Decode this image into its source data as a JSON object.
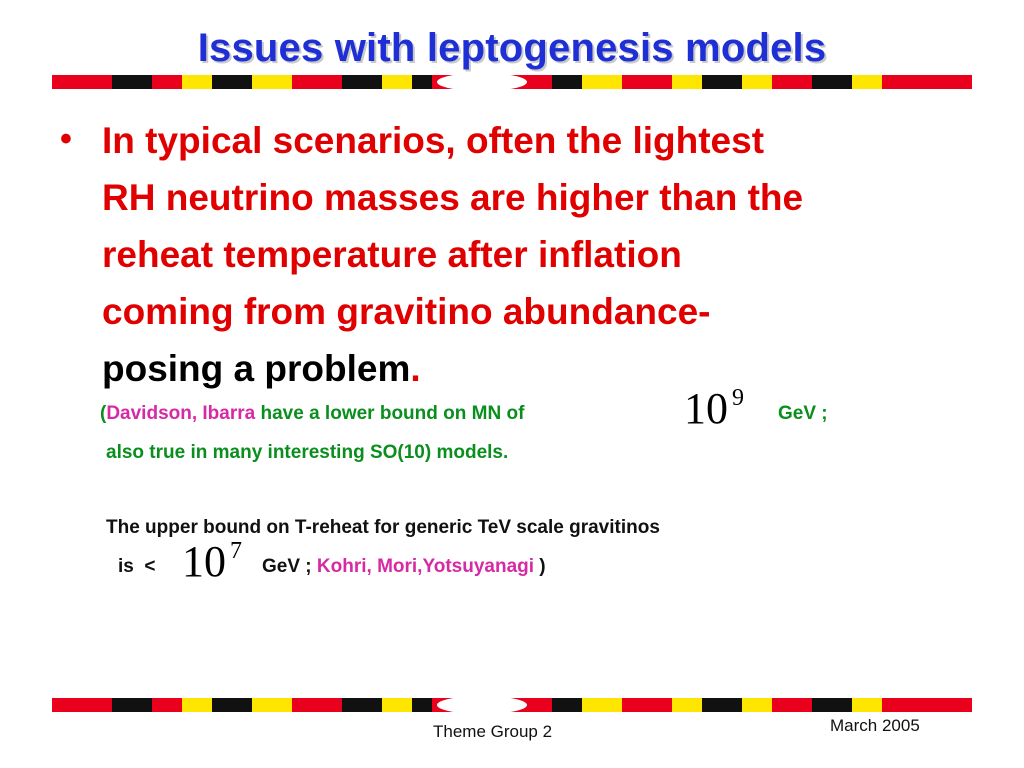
{
  "slide": {
    "title": "Issues with leptogenesis models",
    "bullet": {
      "symbol": "•",
      "line1": "In typical scenarios, often the lightest",
      "line2": "RH neutrino masses are higher than the",
      "line3": "reheat temperature after inflation",
      "line4": "coming from gravitino abundance-",
      "line5_main": "posing a problem",
      "line5_period": "."
    },
    "citation1": {
      "open_paren": "(",
      "authors": "Davidson, Ibarra",
      "text": " have a lower bound on MN of",
      "power_base": "10",
      "power_exp": "9",
      "unit": "GeV ;",
      "line2": "also true in many interesting SO(10) models."
    },
    "citation2": {
      "line1": "The upper bound on T-reheat for generic TeV scale gravitinos",
      "is_text": "is  <",
      "power_base": "10",
      "power_exp": "7",
      "unit": "GeV ;",
      "authors": "Kohri, Mori,Yotsuyanagi",
      "close_paren": ")"
    }
  },
  "footer": {
    "center": "Theme Group 2",
    "right": "March 2005"
  },
  "colors": {
    "title": "#1f2fd6",
    "bullet": "#e00000",
    "citation_green": "#0a8f1e",
    "citation_magenta": "#d62aa4",
    "band_red": "#e8001c",
    "band_yellow": "#ffe600",
    "band_black": "#111111"
  }
}
